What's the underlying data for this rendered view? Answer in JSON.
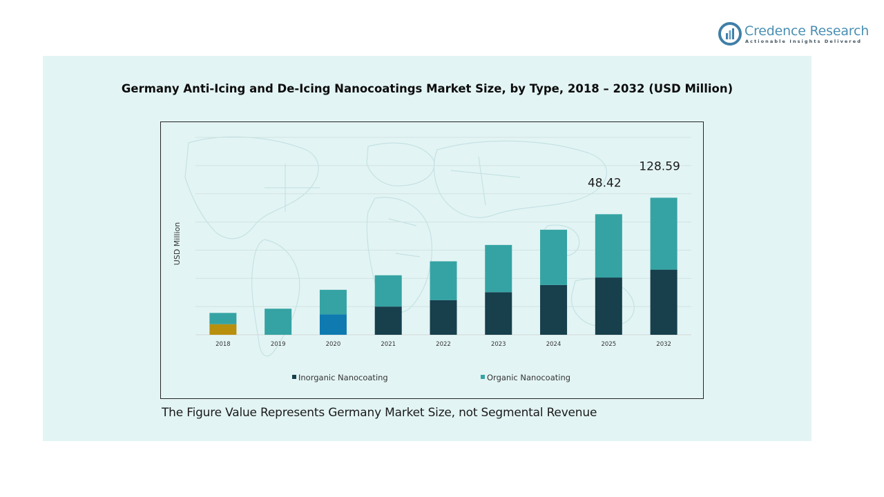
{
  "brand": {
    "name": "Credence Research",
    "tagline": "Actionable Insights Delivered"
  },
  "footnote": "The Figure Value Represents Germany Market Size, not Segmental Revenue",
  "chart_data": {
    "type": "bar",
    "stacked": true,
    "title": "Germany Anti-Icing and De-Icing Nanocoatings Market Size, by Type, 2018 – 2032 (USD Million)",
    "xlabel": "",
    "ylabel": "USD Million",
    "ylim": [
      0,
      140
    ],
    "grid": true,
    "legend_position": "bottom",
    "categories": [
      "2018",
      "2019",
      "2020",
      "2021",
      "2022",
      "2023",
      "2024",
      "2025",
      "2032"
    ],
    "series": [
      {
        "name": "Inorganic Nanocoating",
        "color": "#173f4c",
        "values": [
          7.5,
          0,
          14.5,
          20,
          24.6,
          30.2,
          35.3,
          40.6,
          46.2
        ]
      },
      {
        "name": "Organic Nanocoating",
        "color": "#35a3a3",
        "values": [
          8,
          18.5,
          17.4,
          22.2,
          27.5,
          33.5,
          39.2,
          44.9,
          51
        ]
      }
    ],
    "highlight_colors": {
      "2018": {
        "Inorganic Nanocoating": "#b8900e"
      },
      "2020": {
        "Inorganic Nanocoating": "#0f7ab0"
      }
    },
    "annotations": [
      {
        "category": "2025",
        "text": "48.42"
      },
      {
        "category": "2032",
        "text": "128.59"
      }
    ]
  }
}
